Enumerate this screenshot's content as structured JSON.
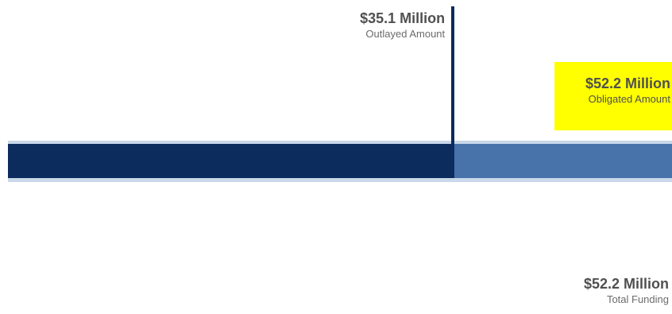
{
  "chart_data": {
    "type": "bar",
    "orientation": "horizontal",
    "stacked": true,
    "series": [
      {
        "name": "Outlayed Amount",
        "value": 35.1,
        "label": "$35.1 Million"
      },
      {
        "name": "Obligated Amount",
        "value": 52.2,
        "label": "$52.2 Million"
      },
      {
        "name": "Total Funding",
        "value": 52.2,
        "label": "$52.2 Million"
      }
    ],
    "unit": "Million USD",
    "xlim": [
      0,
      52.2
    ],
    "grid": false,
    "colors": {
      "outlayed": "#0b2c5c",
      "obligated": "#4773aa",
      "total": "#c9d8ea",
      "highlight": "#ffff00"
    }
  }
}
